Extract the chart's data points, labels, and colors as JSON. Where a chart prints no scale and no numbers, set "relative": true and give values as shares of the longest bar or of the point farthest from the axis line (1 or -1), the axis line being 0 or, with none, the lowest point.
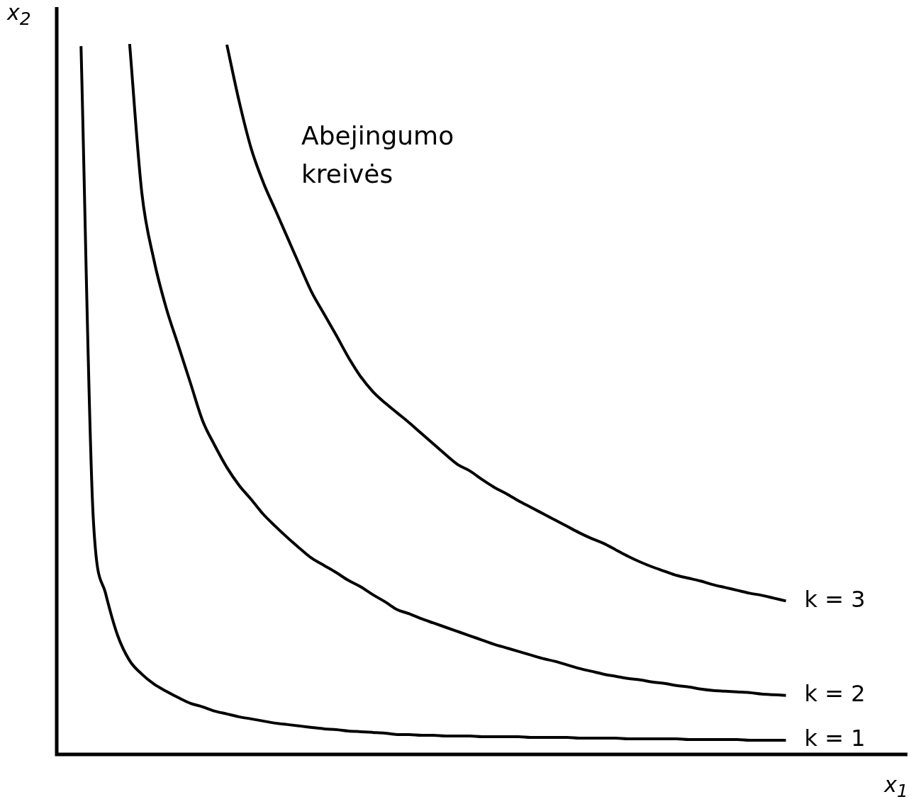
{
  "chart_data": {
    "type": "line",
    "relative": true,
    "xlabel": "x$_{1}$",
    "ylabel": "x$_{2}$",
    "annotations": [
      "Abejingumo kreivės"
    ],
    "marker": "none",
    "line_style": "solid",
    "categories": [
      null,
      null,
      null,
      null,
      null,
      null,
      null,
      null,
      null,
      null,
      null,
      null,
      null,
      null,
      null,
      null,
      null,
      null,
      null,
      null,
      null,
      null,
      null,
      null,
      null,
      null,
      null,
      null,
      null,
      null,
      null,
      null,
      null,
      null,
      null,
      null,
      null,
      null,
      null,
      null,
      null,
      null,
      null,
      null,
      null,
      null,
      null,
      null,
      null,
      null,
      null,
      null,
      null,
      null,
      null,
      null,
      null,
      null,
      null,
      null,
      null,
      null,
      null,
      null,
      null,
      null,
      null,
      null,
      null,
      null,
      null
    ],
    "series": [
      {
        "name": "k = 1",
        "color": "#000000",
        "values": [
          null,
          null,
          0.997,
          0.335,
          0.228,
          0.168,
          0.132,
          0.113,
          0.099,
          0.089,
          0.08,
          0.072,
          0.067,
          0.061,
          0.057,
          0.053,
          0.05,
          0.047,
          0.044,
          0.042,
          0.04,
          0.038,
          0.036,
          0.035,
          0.033,
          0.032,
          0.031,
          0.03,
          0.028,
          0.028,
          0.027,
          0.027,
          0.026,
          0.026,
          0.026,
          0.025,
          0.025,
          0.025,
          0.025,
          0.024,
          0.024,
          0.024,
          0.024,
          0.023,
          0.023,
          0.023,
          0.023,
          0.022,
          0.022,
          0.022,
          0.022,
          0.022,
          0.021,
          0.021,
          0.021,
          0.021,
          0.021,
          0.02,
          0.02,
          0.02,
          0.02,
          null,
          null,
          null,
          null,
          null,
          null,
          null,
          null,
          null,
          null
        ]
      },
      {
        "name": "k = 2",
        "color": "#000000",
        "values": [
          null,
          null,
          null,
          null,
          null,
          null,
          1.0,
          0.791,
          0.696,
          0.629,
          0.576,
          0.523,
          0.47,
          0.435,
          0.404,
          0.379,
          0.359,
          0.338,
          0.321,
          0.305,
          0.29,
          0.276,
          0.266,
          0.256,
          0.245,
          0.236,
          0.225,
          0.215,
          0.204,
          0.198,
          0.191,
          0.185,
          0.179,
          0.173,
          0.167,
          0.161,
          0.155,
          0.15,
          0.145,
          0.14,
          0.135,
          0.131,
          0.126,
          0.121,
          0.117,
          0.113,
          0.11,
          0.107,
          0.105,
          0.102,
          0.1,
          0.097,
          0.095,
          0.092,
          0.09,
          0.089,
          0.088,
          0.087,
          0.085,
          0.084,
          0.083,
          null,
          null,
          null,
          null,
          null,
          null,
          null,
          null,
          null,
          null
        ]
      },
      {
        "name": "k = 3",
        "color": "#000000",
        "values": [
          null,
          null,
          null,
          null,
          null,
          null,
          null,
          null,
          null,
          null,
          null,
          null,
          null,
          null,
          0.999,
          0.92,
          0.853,
          0.805,
          0.766,
          0.727,
          0.688,
          0.65,
          0.62,
          0.59,
          0.559,
          0.532,
          0.511,
          0.495,
          0.481,
          0.467,
          0.452,
          0.437,
          0.422,
          0.408,
          0.399,
          0.387,
          0.376,
          0.367,
          0.357,
          0.348,
          0.339,
          0.33,
          0.321,
          0.312,
          0.304,
          0.297,
          0.288,
          0.279,
          0.271,
          0.264,
          0.258,
          0.252,
          0.248,
          0.244,
          0.239,
          0.235,
          0.231,
          0.227,
          0.224,
          0.22,
          0.216,
          null,
          null,
          null,
          null,
          null,
          null,
          null,
          null,
          null,
          null
        ]
      }
    ]
  }
}
